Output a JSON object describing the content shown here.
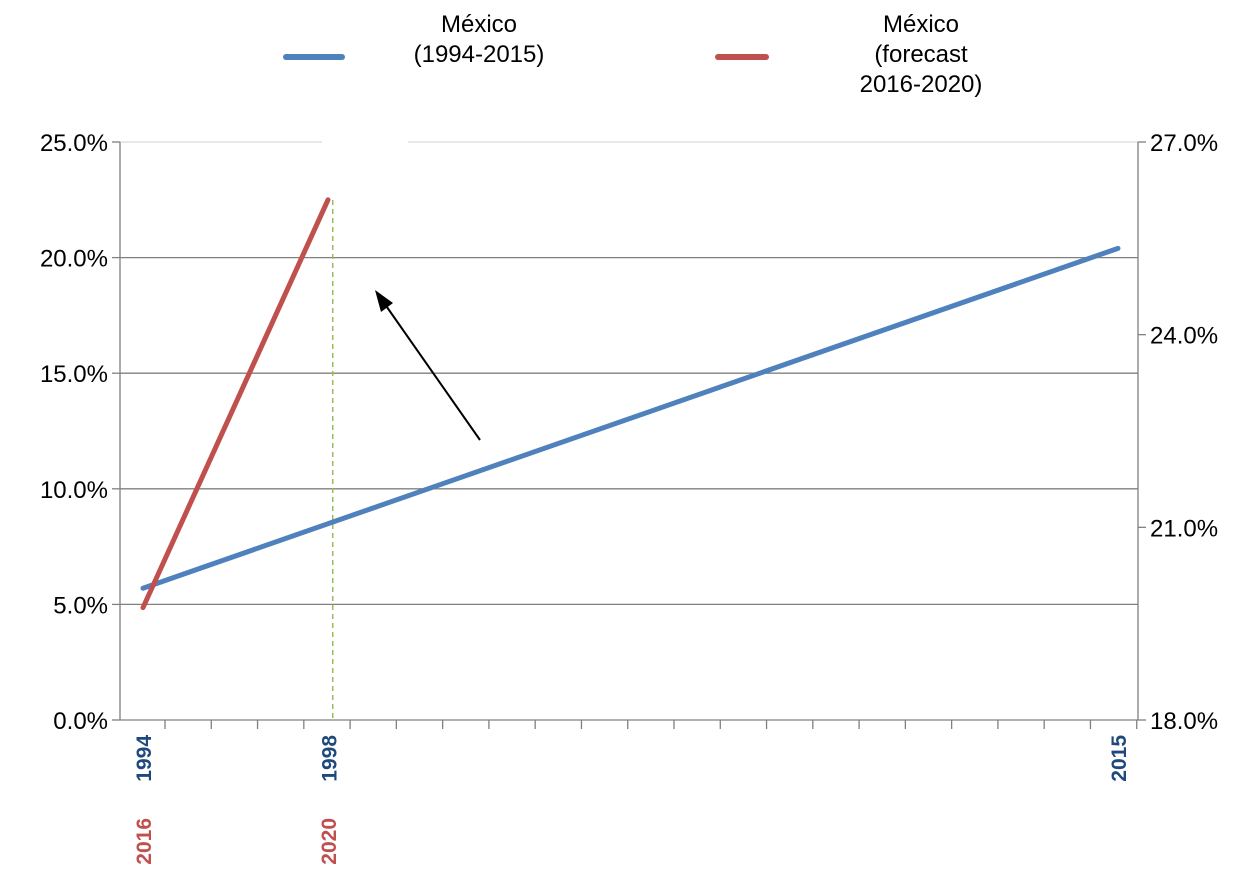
{
  "chart_data": {
    "type": "line",
    "title": "",
    "xlabel": "",
    "ylabel": "",
    "grid": true,
    "legend_position": "top",
    "y_left": {
      "min": 0,
      "max": 25,
      "ticks": [
        "0.0%",
        "5.0%",
        "10.0%",
        "15.0%",
        "20.0%",
        "25.0%"
      ]
    },
    "y_right": {
      "min": 18,
      "max": 27,
      "ticks": [
        "18.0%",
        "21.0%",
        "24.0%",
        "27.0%"
      ]
    },
    "x_axis_primary": {
      "min": 1994,
      "max": 2015,
      "labeled_ticks": [
        "1994",
        "1998",
        "2015"
      ],
      "color": "#1F497D"
    },
    "x_axis_secondary": {
      "min": 2016,
      "max": 2020,
      "labeled_ticks": [
        "2016",
        "2020"
      ],
      "color": "#C0504D"
    },
    "series": [
      {
        "name_lines": [
          "México",
          "(1994-2015)"
        ],
        "color": "#4F81BD",
        "axis": "left",
        "x_axis": "primary",
        "x": [
          1994,
          2015
        ],
        "y": [
          5.7,
          20.4
        ]
      },
      {
        "name_lines": [
          "México",
          "(forecast",
          "2016-2020)"
        ],
        "color": "#C0504D",
        "axis": "right",
        "x_axis": "secondary",
        "x": [
          2016,
          2020
        ],
        "y": [
          19.75,
          26.1
        ]
      }
    ],
    "annotations": [
      {
        "type": "vertical-dashed-line",
        "x": 1998,
        "color": "#9BBB59"
      },
      {
        "type": "arrow",
        "color": "#000000",
        "direction": "up-left"
      }
    ]
  }
}
